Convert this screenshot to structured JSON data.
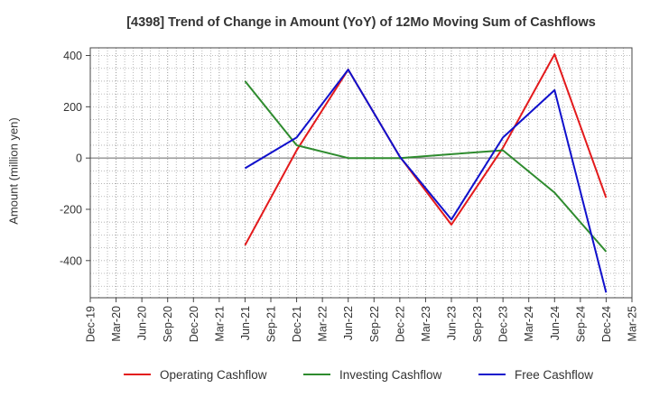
{
  "chart_data": {
    "type": "line",
    "title": "[4398]  Trend of Change in Amount (YoY) of 12Mo Moving Sum of Cashflows",
    "xlabel": "",
    "ylabel": "Amount (million yen)",
    "categories": [
      "Dec-19",
      "Mar-20",
      "Jun-20",
      "Sep-20",
      "Dec-20",
      "Mar-21",
      "Jun-21",
      "Sep-21",
      "Dec-21",
      "Mar-22",
      "Jun-22",
      "Sep-22",
      "Dec-22",
      "Mar-23",
      "Jun-23",
      "Sep-23",
      "Dec-23",
      "Mar-24",
      "Jun-24",
      "Sep-24",
      "Dec-24",
      "Mar-25"
    ],
    "ylim": [
      -545,
      430
    ],
    "yticks": [
      400,
      200,
      0,
      -200,
      -400
    ],
    "ytick_labels": [
      "400",
      "200",
      "0",
      "-200",
      "-400"
    ],
    "grid": true,
    "legend_position": "bottom",
    "series": [
      {
        "name": "Operating Cashflow",
        "color": "#e31a1c",
        "values": [
          null,
          null,
          null,
          null,
          null,
          null,
          -340,
          null,
          30,
          null,
          345,
          null,
          5,
          null,
          -260,
          null,
          40,
          null,
          405,
          null,
          -155,
          null
        ]
      },
      {
        "name": "Investing Cashflow",
        "color": "#2e8b2e",
        "values": [
          null,
          null,
          null,
          null,
          null,
          null,
          300,
          null,
          50,
          null,
          0,
          null,
          0,
          null,
          15,
          null,
          30,
          null,
          -135,
          null,
          -365,
          null
        ]
      },
      {
        "name": "Free Cashflow",
        "color": "#1010cc",
        "values": [
          null,
          null,
          null,
          null,
          null,
          null,
          -40,
          null,
          80,
          null,
          345,
          null,
          5,
          null,
          -240,
          null,
          80,
          null,
          265,
          null,
          -525,
          null
        ]
      }
    ]
  }
}
